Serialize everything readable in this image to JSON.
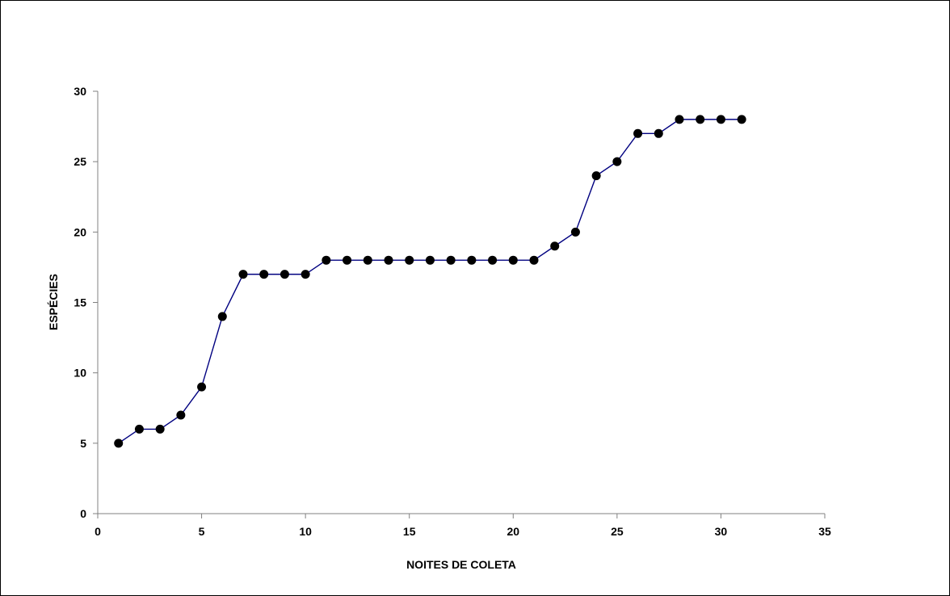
{
  "chart_data": {
    "type": "line",
    "title": "",
    "xlabel": "NOITES DE COLETA",
    "ylabel": "ESPÉCIES",
    "xlim": [
      0,
      35
    ],
    "ylim": [
      0,
      30
    ],
    "x_ticks": [
      0,
      5,
      10,
      15,
      20,
      25,
      30,
      35
    ],
    "y_ticks": [
      0,
      5,
      10,
      15,
      20,
      25,
      30
    ],
    "grid": false,
    "legend": "none",
    "series": [
      {
        "x": [
          1,
          2,
          3,
          4,
          5,
          6,
          7,
          8,
          9,
          10,
          11,
          12,
          13,
          14,
          15,
          16,
          17,
          18,
          19,
          20,
          21,
          22,
          23,
          24,
          25,
          26,
          27,
          28,
          29,
          30,
          31
        ],
        "values": [
          5,
          6,
          6,
          7,
          9,
          14,
          17,
          17,
          17,
          17,
          18,
          18,
          18,
          18,
          18,
          18,
          18,
          18,
          18,
          18,
          18,
          19,
          20,
          24,
          25,
          27,
          27,
          28,
          28,
          28,
          28
        ],
        "line_color": "#000080",
        "marker": "circle",
        "marker_color": "#000000"
      }
    ]
  }
}
